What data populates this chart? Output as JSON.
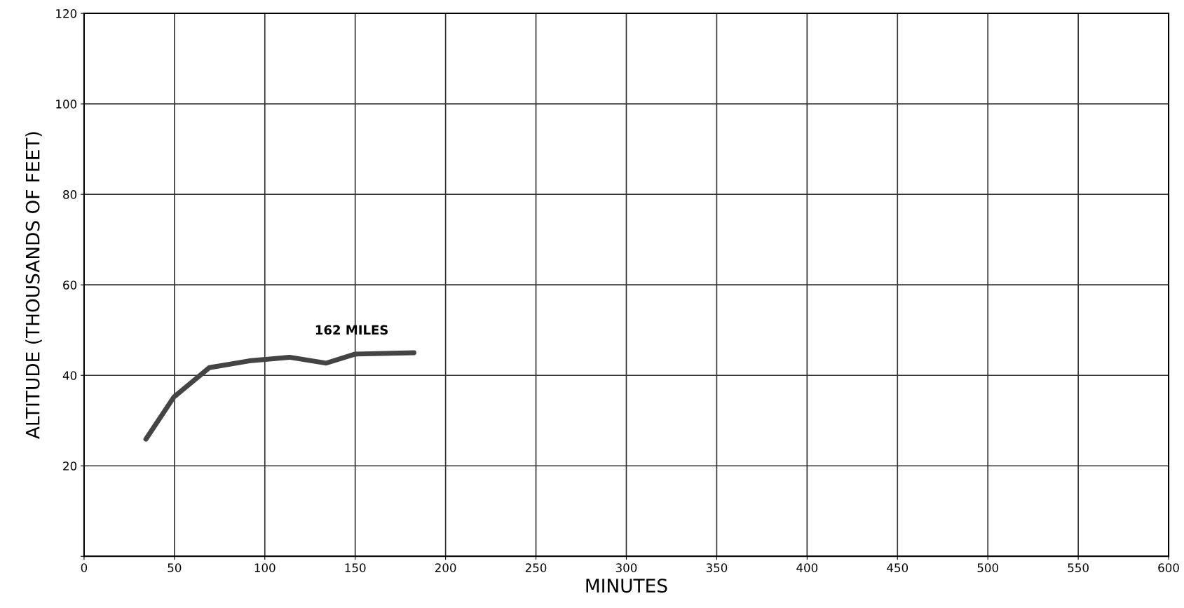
{
  "chart_data": {
    "type": "line",
    "xlabel": "MINUTES",
    "ylabel": "ALTITUDE (THOUSANDS OF FEET)",
    "x": [
      34.2,
      49.7,
      69.3,
      91.4,
      113.6,
      134,
      150,
      182.5
    ],
    "series": [
      {
        "color": "#444444",
        "values": [
          25.9,
          35.2,
          41.7,
          43.2,
          44.0,
          42.7,
          44.7,
          45.0
        ]
      }
    ],
    "xlim": [
      0,
      600
    ],
    "ylim": [
      0,
      120
    ],
    "xticks": [
      0,
      50,
      100,
      150,
      200,
      250,
      300,
      350,
      400,
      450,
      500,
      550,
      600
    ],
    "yticks": [
      {
        "value": 0,
        "label": null
      },
      20,
      40,
      60,
      80,
      100,
      120
    ],
    "grid": true,
    "line_style": "solid",
    "marker": "none",
    "annotations": [
      "162 MILES"
    ]
  }
}
